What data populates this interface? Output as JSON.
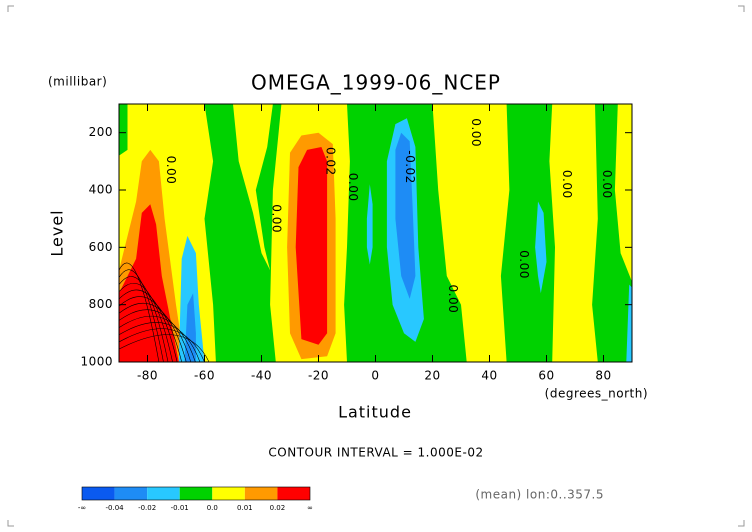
{
  "chart_data": {
    "type": "contour",
    "title": "OMEGA_1999-06_NCEP",
    "y_units": "(millibar)",
    "y_label": "Level",
    "x_label": "Latitude",
    "x_units": "(degrees_north)",
    "note": "CONTOUR INTERVAL = 1.000E-02",
    "footer": "(mean) lon:0..357.5",
    "xlim": [
      -90,
      90
    ],
    "xticks": [
      -80,
      -60,
      -40,
      -20,
      0,
      20,
      40,
      60,
      80
    ],
    "ylim": [
      1000,
      100
    ],
    "yticks": [
      200,
      400,
      600,
      800,
      1000
    ],
    "contour_labels": [
      "0.00",
      "0.00",
      "0.02",
      "0.00",
      "-0.02",
      "0.00",
      "0.00",
      "0.00",
      "0.00",
      "0.00"
    ],
    "colorbar": {
      "colors": [
        "#0a5af0",
        "#1e8cf5",
        "#28c8ff",
        "#00d200",
        "#ffff00",
        "#ff9a00",
        "#ff0000"
      ],
      "labels": [
        "-∞",
        "-0.04",
        "-0.02",
        "-0.01",
        "0.0",
        "0.01",
        "0.02",
        "∞"
      ]
    }
  }
}
